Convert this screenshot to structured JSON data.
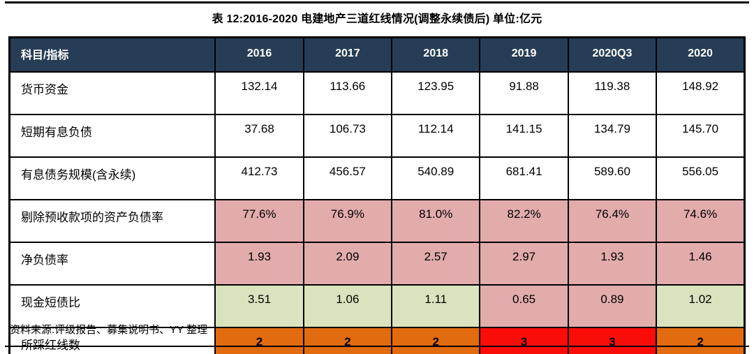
{
  "title": "表 12:2016-2020 电建地产三道红线情况(调整永续债后) 单位:亿元",
  "source_note": "资料来源:评级报告、募集说明书、YY 整理",
  "colors": {
    "header_bg": "#263D55",
    "header_text": "#FFFFFF",
    "white": "#FFFFFF",
    "pink": "#E2ABAC",
    "green": "#D9E4BE",
    "orange": "#E16B0E",
    "red": "#FA0D09",
    "border": "#000000"
  },
  "table": {
    "header": [
      "科目/指标",
      "2016",
      "2017",
      "2018",
      "2019",
      "2020Q3",
      "2020"
    ],
    "rows": [
      {
        "label": "货币资金",
        "values": [
          "132.14",
          "113.66",
          "123.95",
          "91.88",
          "119.38",
          "148.92"
        ],
        "fills": [
          "white",
          "white",
          "white",
          "white",
          "white",
          "white"
        ],
        "bold": false
      },
      {
        "label": "短期有息负债",
        "values": [
          "37.68",
          "106.73",
          "112.14",
          "141.15",
          "134.79",
          "145.70"
        ],
        "fills": [
          "white",
          "white",
          "white",
          "white",
          "white",
          "white"
        ],
        "bold": false
      },
      {
        "label": "有息债务规模(含永续)",
        "values": [
          "412.73",
          "456.57",
          "540.89",
          "681.41",
          "589.60",
          "556.05"
        ],
        "fills": [
          "white",
          "white",
          "white",
          "white",
          "white",
          "white"
        ],
        "bold": false
      },
      {
        "label": "剔除预收款项的资产负债率",
        "values": [
          "77.6%",
          "76.9%",
          "81.0%",
          "82.2%",
          "76.4%",
          "74.6%"
        ],
        "fills": [
          "pink",
          "pink",
          "pink",
          "pink",
          "pink",
          "pink"
        ],
        "bold": false
      },
      {
        "label": "净负债率",
        "values": [
          "1.93",
          "2.09",
          "2.57",
          "2.97",
          "1.93",
          "1.46"
        ],
        "fills": [
          "pink",
          "pink",
          "pink",
          "pink",
          "pink",
          "pink"
        ],
        "bold": false
      },
      {
        "label": "现金短债比",
        "values": [
          "3.51",
          "1.06",
          "1.11",
          "0.65",
          "0.89",
          "1.02"
        ],
        "fills": [
          "green",
          "green",
          "green",
          "pink",
          "pink",
          "green"
        ],
        "bold": false
      },
      {
        "label": "所踩红线数",
        "values": [
          "2",
          "2",
          "2",
          "3",
          "3",
          "2"
        ],
        "fills": [
          "orange",
          "orange",
          "orange",
          "red",
          "red",
          "orange"
        ],
        "bold": true
      }
    ]
  }
}
